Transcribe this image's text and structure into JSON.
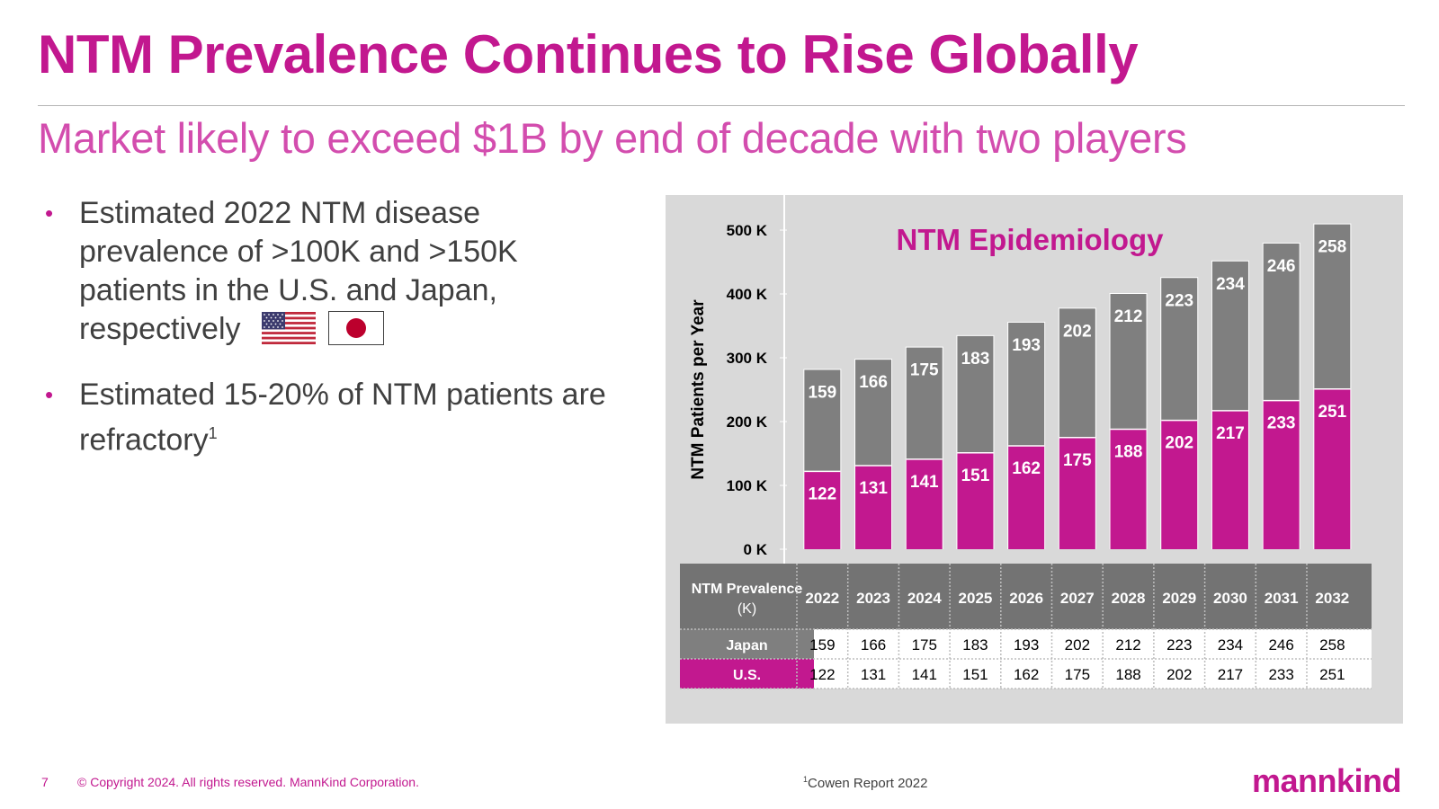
{
  "slide": {
    "title": "NTM Prevalence Continues to Rise Globally",
    "subtitle": "Market likely to exceed $1B by end of decade with two players",
    "bullets": [
      {
        "text": "Estimated 2022 NTM disease prevalence of >100K and >150K patients in the U.S. and Japan, respectively",
        "sup": ""
      },
      {
        "text": "Estimated 15-20% of NTM patients are refractory",
        "sup": "1"
      }
    ],
    "flags": [
      "us-flag",
      "japan-flag"
    ]
  },
  "footer": {
    "page_number": "7",
    "copyright": "© Copyright 2024. All rights reserved. MannKind Corporation.",
    "footnote_mark": "1",
    "footnote": "Cowen Report 2022",
    "logo": "mannkind"
  },
  "colors": {
    "magenta": "#c2188f",
    "gray_bar": "#7f7f7f",
    "panel": "#d9d9d9",
    "table_header": "#737373"
  },
  "chart_data": {
    "type": "bar",
    "stacked": true,
    "title": "NTM Epidemiology",
    "ylabel": "NTM Patients per Year",
    "xlabel": "",
    "ylim": [
      0,
      500
    ],
    "yticks": [
      0,
      100,
      200,
      300,
      400,
      500
    ],
    "ytick_labels": [
      "0 K",
      "100 K",
      "200 K",
      "300 K",
      "400 K",
      "500 K"
    ],
    "categories": [
      "2022",
      "2023",
      "2024",
      "2025",
      "2026",
      "2027",
      "2028",
      "2029",
      "2030",
      "2031",
      "2032"
    ],
    "series": [
      {
        "name": "U.S.",
        "color": "#c2188f",
        "values": [
          122,
          131,
          141,
          151,
          162,
          175,
          188,
          202,
          217,
          233,
          251
        ]
      },
      {
        "name": "Japan",
        "color": "#7f7f7f",
        "values": [
          159,
          166,
          175,
          183,
          193,
          202,
          212,
          223,
          234,
          246,
          258
        ]
      }
    ],
    "table": {
      "header_line1": "NTM Prevalence",
      "header_line2": "(K)",
      "row_order": [
        "Japan",
        "U.S."
      ]
    }
  }
}
